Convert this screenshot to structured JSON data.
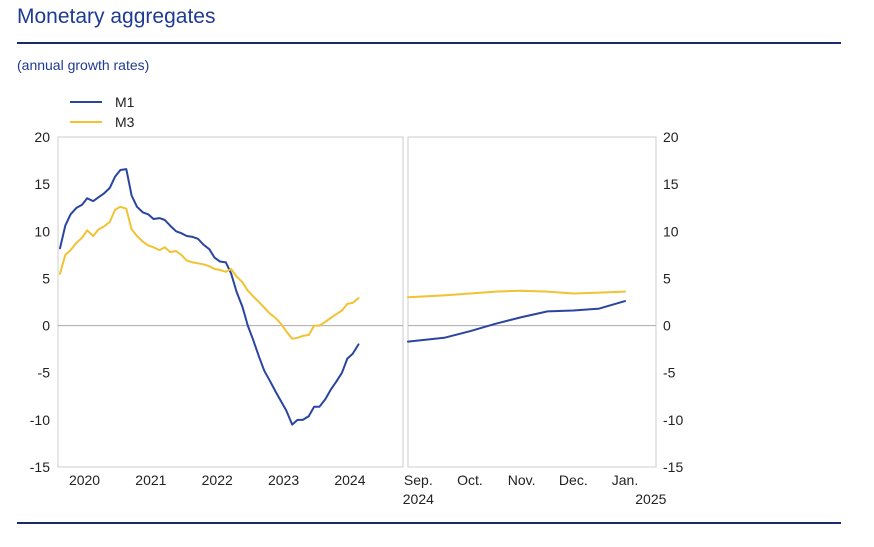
{
  "header": {
    "title": "Monetary aggregates",
    "subtitle": "(annual growth rates)"
  },
  "colors": {
    "m1": "#2a45a0",
    "m3": "#f2c232",
    "zero_line": "#aaaaaa",
    "frame": "#cccccc"
  },
  "chart_data": {
    "type": "line",
    "title": "Monetary aggregates",
    "subtitle": "(annual growth rates)",
    "ylim": [
      -15,
      20
    ],
    "yticks": [
      "20",
      "15",
      "10",
      "5",
      "0",
      "-5",
      "-10",
      "-15"
    ],
    "ytick_values": [
      20,
      15,
      10,
      5,
      0,
      -5,
      -10,
      -15
    ],
    "legend": [
      "M1",
      "M3"
    ],
    "legend_position": "top-left",
    "panels": [
      {
        "name": "annual",
        "x_range": [
          2019.6,
          2024.8
        ],
        "ticks": [
          {
            "x": 2020,
            "label": "2020"
          },
          {
            "x": 2021,
            "label": "2021"
          },
          {
            "x": 2022,
            "label": "2022"
          },
          {
            "x": 2023,
            "label": "2023"
          },
          {
            "x": 2024,
            "label": "2024"
          }
        ],
        "series": [
          {
            "name": "M1",
            "x": [
              2019.63,
              2019.71,
              2019.79,
              2019.88,
              2019.96,
              2020.04,
              2020.13,
              2020.21,
              2020.29,
              2020.38,
              2020.46,
              2020.54,
              2020.63,
              2020.71,
              2020.79,
              2020.88,
              2020.96,
              2021.04,
              2021.13,
              2021.21,
              2021.29,
              2021.38,
              2021.46,
              2021.54,
              2021.63,
              2021.71,
              2021.79,
              2021.88,
              2021.96,
              2022.04,
              2022.13,
              2022.21,
              2022.29,
              2022.38,
              2022.46,
              2022.54,
              2022.63,
              2022.71,
              2022.79,
              2022.88,
              2022.96,
              2023.04,
              2023.13,
              2023.21,
              2023.29,
              2023.38,
              2023.46,
              2023.54,
              2023.63,
              2023.71,
              2023.79,
              2023.88,
              2023.96,
              2024.04,
              2024.13
            ],
            "values": [
              8.2,
              10.6,
              11.8,
              12.5,
              12.8,
              13.5,
              13.2,
              13.6,
              14.0,
              14.6,
              15.8,
              16.5,
              16.6,
              13.8,
              12.6,
              12.0,
              11.8,
              11.3,
              11.4,
              11.2,
              10.6,
              10.0,
              9.8,
              9.5,
              9.4,
              9.2,
              8.6,
              8.1,
              7.2,
              6.8,
              6.7,
              5.5,
              3.6,
              2.0,
              0.0,
              -1.5,
              -3.3,
              -4.8,
              -5.8,
              -7.0,
              -8.0,
              -9.0,
              -10.5,
              -10.0,
              -10.0,
              -9.6,
              -8.6,
              -8.6,
              -7.8,
              -6.8,
              -6.0,
              -5.0,
              -3.5,
              -3.0,
              -2.0
            ]
          },
          {
            "name": "M3",
            "x": [
              2019.63,
              2019.71,
              2019.79,
              2019.88,
              2019.96,
              2020.04,
              2020.13,
              2020.21,
              2020.29,
              2020.38,
              2020.46,
              2020.54,
              2020.63,
              2020.71,
              2020.79,
              2020.88,
              2020.96,
              2021.04,
              2021.13,
              2021.21,
              2021.29,
              2021.38,
              2021.46,
              2021.54,
              2021.63,
              2021.71,
              2021.79,
              2021.88,
              2021.96,
              2022.04,
              2022.13,
              2022.21,
              2022.29,
              2022.38,
              2022.46,
              2022.54,
              2022.63,
              2022.71,
              2022.79,
              2022.88,
              2022.96,
              2023.04,
              2023.13,
              2023.21,
              2023.29,
              2023.38,
              2023.46,
              2023.54,
              2023.63,
              2023.71,
              2023.79,
              2023.88,
              2023.96,
              2024.04,
              2024.13
            ],
            "values": [
              5.5,
              7.5,
              8.0,
              8.8,
              9.3,
              10.1,
              9.5,
              10.2,
              10.5,
              11.0,
              12.3,
              12.6,
              12.4,
              10.2,
              9.5,
              8.9,
              8.5,
              8.3,
              8.0,
              8.3,
              7.8,
              7.9,
              7.5,
              6.9,
              6.7,
              6.6,
              6.5,
              6.3,
              6.0,
              5.9,
              5.7,
              6.0,
              5.2,
              4.6,
              3.7,
              3.1,
              2.5,
              1.9,
              1.3,
              0.8,
              0.2,
              -0.6,
              -1.4,
              -1.3,
              -1.1,
              -1.0,
              0.0,
              0.0,
              0.4,
              0.8,
              1.2,
              1.6,
              2.3,
              2.4,
              2.9
            ]
          }
        ]
      },
      {
        "name": "monthly",
        "x_range": [
          -0.2,
          4.6
        ],
        "ticks": [
          {
            "x": 0,
            "label": "Sep."
          },
          {
            "x": 1,
            "label": "Oct."
          },
          {
            "x": 2,
            "label": "Nov."
          },
          {
            "x": 3,
            "label": "Dec."
          },
          {
            "x": 4,
            "label": "Jan."
          }
        ],
        "year_labels": [
          {
            "x": 0,
            "label": "2024"
          },
          {
            "x": 4.5,
            "label": "2025"
          }
        ],
        "series": [
          {
            "name": "M1",
            "x": [
              -0.2,
              0.5,
              1.0,
              1.5,
              2.0,
              2.5,
              3.0,
              3.5,
              4.0
            ],
            "values": [
              -1.7,
              -1.3,
              -0.6,
              0.2,
              0.9,
              1.5,
              1.6,
              1.8,
              2.6
            ]
          },
          {
            "name": "M3",
            "x": [
              -0.2,
              0.5,
              1.0,
              1.5,
              2.0,
              2.5,
              3.0,
              3.5,
              4.0
            ],
            "values": [
              3.0,
              3.2,
              3.4,
              3.6,
              3.7,
              3.6,
              3.4,
              3.5,
              3.6
            ]
          }
        ]
      }
    ]
  }
}
